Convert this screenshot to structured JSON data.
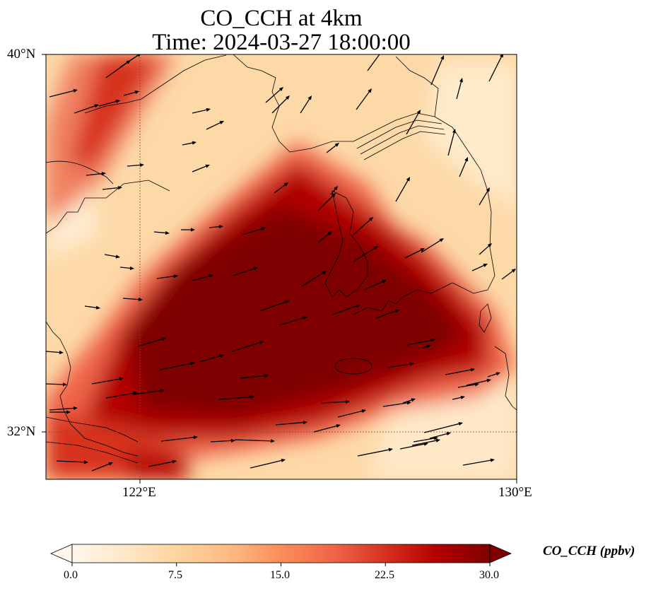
{
  "title_line1": "CO_CCH at 4km",
  "title_line2": "Time: 2024-03-27 18:00:00",
  "map": {
    "lat_labels": [
      "40°N",
      "32°N"
    ],
    "lon_labels": [
      "122°E",
      "130°E"
    ],
    "lat_range": [
      31,
      40
    ],
    "lon_range": [
      120,
      130
    ],
    "gridlines": "dotted at 122°E and 32°N"
  },
  "colorbar": {
    "label": "CO_CCH (ppbv)",
    "ticks": [
      "0.0",
      "7.5",
      "15.0",
      "22.5",
      "30.0"
    ],
    "range": [
      0,
      30
    ],
    "extend": "both",
    "colormap": "OrRd"
  },
  "colors": {
    "max": "#7f0000",
    "high": "#c51b00",
    "mid": "#ef6548",
    "low": "#fdd49e",
    "min": "#fff7ec"
  },
  "vectors": "wind arrows, predominantly westerly to southwesterly"
}
